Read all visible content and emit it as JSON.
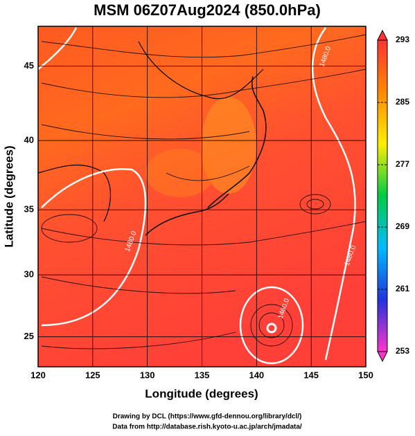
{
  "chart_data": {
    "type": "map",
    "title": "MSM 06Z07Aug2024 (850.0hPa)",
    "x_label": "Longitude (degrees)",
    "y_label": "Latitude  (degrees)",
    "xlim": [
      120,
      150
    ],
    "xticks": [
      120,
      125,
      130,
      135,
      140,
      145,
      150
    ],
    "ylim": [
      22.5,
      47.5
    ],
    "yticks": [
      25,
      30,
      35,
      40,
      45
    ],
    "projection": "mercator",
    "colorbar": {
      "lim": [
        253,
        293
      ],
      "ticks": [
        253,
        261,
        269,
        277,
        285,
        293
      ],
      "colors": [
        "#ff33cc",
        "#2233dd",
        "#00bbff",
        "#00cc44",
        "#ffee00",
        "#ff8800",
        "#ff3333"
      ]
    },
    "annotations": [
      {
        "text": "1480.0",
        "x": 146.3,
        "y": 45.6
      },
      {
        "text": "1480.0",
        "x": 148.6,
        "y": 31.5
      },
      {
        "text": "1460.0",
        "x": 142.5,
        "y": 27.3
      },
      {
        "text": "1480.0",
        "x": 128.5,
        "y": 32.6
      }
    ],
    "footer": [
      "Drawing by DCL (https://www.gfd-dennou.org/library/dcl/)",
      "Data from http://database.rish.kyoto-u.ac.jp/arch/jmadata/"
    ]
  }
}
